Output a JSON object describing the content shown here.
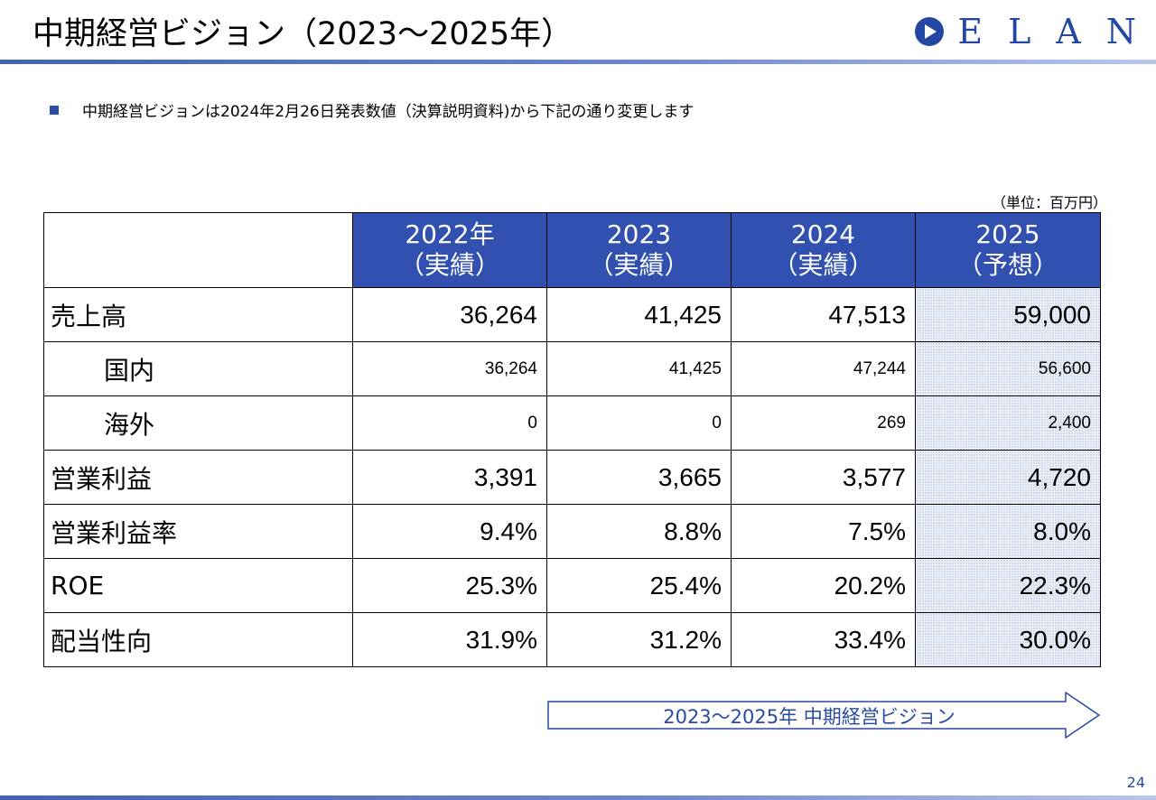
{
  "header": {
    "title": "中期経営ビジョン（2023～2025年）",
    "logo_text": "ELAN",
    "logo_icon": "play-circle-logo-icon",
    "accent_color": "#3150b0"
  },
  "intro": {
    "bullet_text": "中期経営ビジョンは2024年2月26日発表数値（決算説明資料)から下記の通り変更します"
  },
  "table": {
    "unit": "（単位：百万円）",
    "headers": [
      {
        "year": "2022年",
        "status": "（実績）"
      },
      {
        "year": "2023",
        "status": "（実績）"
      },
      {
        "year": "2024",
        "status": "（実績）"
      },
      {
        "year": "2025",
        "status": "（予想）"
      }
    ],
    "rows": [
      {
        "label": "売上高",
        "values": [
          "36,264",
          "41,425",
          "47,513",
          "59,000"
        ]
      },
      {
        "label": "国内",
        "values": [
          "36,264",
          "41,425",
          "47,244",
          "56,600"
        ]
      },
      {
        "label": "海外",
        "values": [
          "0",
          "0",
          "269",
          "2,400"
        ]
      },
      {
        "label": "営業利益",
        "values": [
          "3,391",
          "3,665",
          "3,577",
          "4,720"
        ]
      },
      {
        "label": "営業利益率",
        "values": [
          "9.4%",
          "8.8%",
          "7.5%",
          "8.0%"
        ]
      },
      {
        "label": "ROE",
        "values": [
          "25.3%",
          "25.4%",
          "20.2%",
          "22.3%"
        ]
      },
      {
        "label": "配当性向",
        "values": [
          "31.9%",
          "31.2%",
          "33.4%",
          "30.0%"
        ]
      }
    ]
  },
  "arrow": {
    "label": "2023～2025年 中期経営ビジョン"
  },
  "footer": {
    "page_number": "24"
  }
}
